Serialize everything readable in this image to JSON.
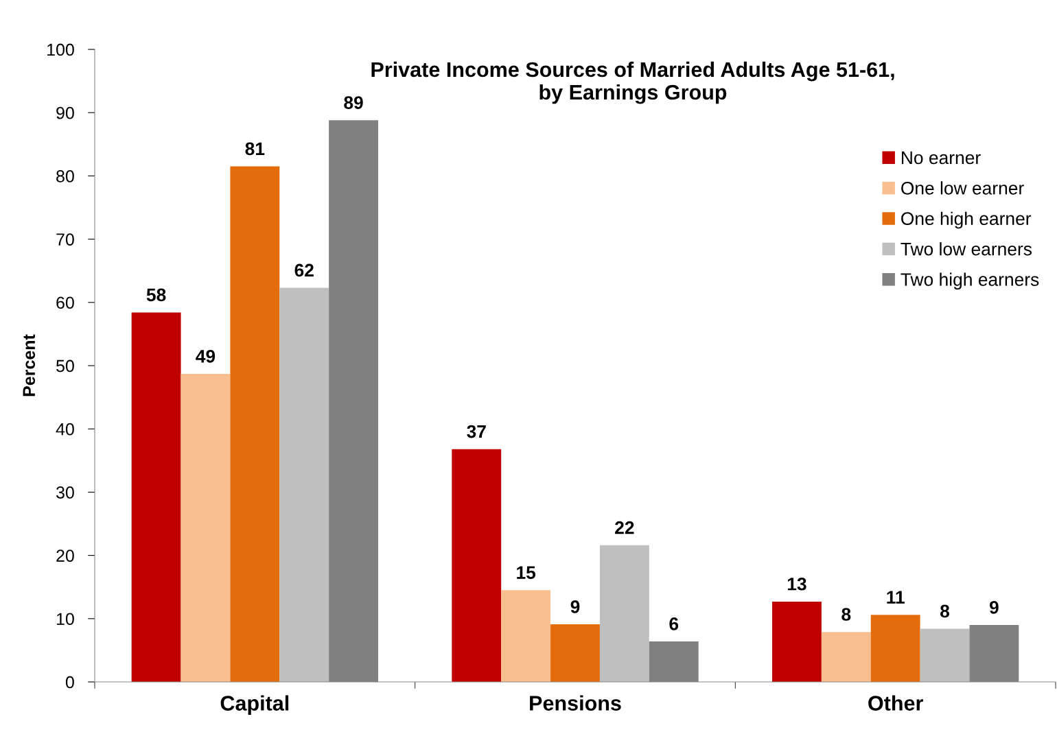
{
  "chart_data": {
    "type": "bar",
    "title": "Private Income Sources of Married Adults Age 51-61,\nby Earnings Group",
    "ylabel": "Percent",
    "categories": [
      "Capital",
      "Pensions",
      "Other"
    ],
    "series": [
      {
        "name": "No earner",
        "color": "#c00000",
        "values": [
          58.4,
          36.8,
          12.7
        ],
        "value_labels": [
          "58",
          "37",
          "13"
        ]
      },
      {
        "name": "One low earner",
        "color": "#f9bf8f",
        "values": [
          48.7,
          14.5,
          7.9
        ],
        "value_labels": [
          "49",
          "15",
          "8"
        ]
      },
      {
        "name": "One high earner",
        "color": "#e46c0a",
        "values": [
          81.5,
          9.1,
          10.6
        ],
        "value_labels": [
          "81",
          "9",
          "11"
        ]
      },
      {
        "name": "Two low earners",
        "color": "#bfbfbf",
        "values": [
          62.3,
          21.6,
          8.4
        ],
        "value_labels": [
          "62",
          "22",
          "8"
        ]
      },
      {
        "name": "Two high earners",
        "color": "#808080",
        "values": [
          88.8,
          6.4,
          9.0
        ],
        "value_labels": [
          "89",
          "6",
          "9"
        ]
      }
    ],
    "ylim": [
      0,
      100
    ],
    "yticks": [
      0,
      10,
      20,
      30,
      40,
      50,
      60,
      70,
      80,
      90,
      100
    ],
    "grid": false,
    "legend": "right"
  }
}
